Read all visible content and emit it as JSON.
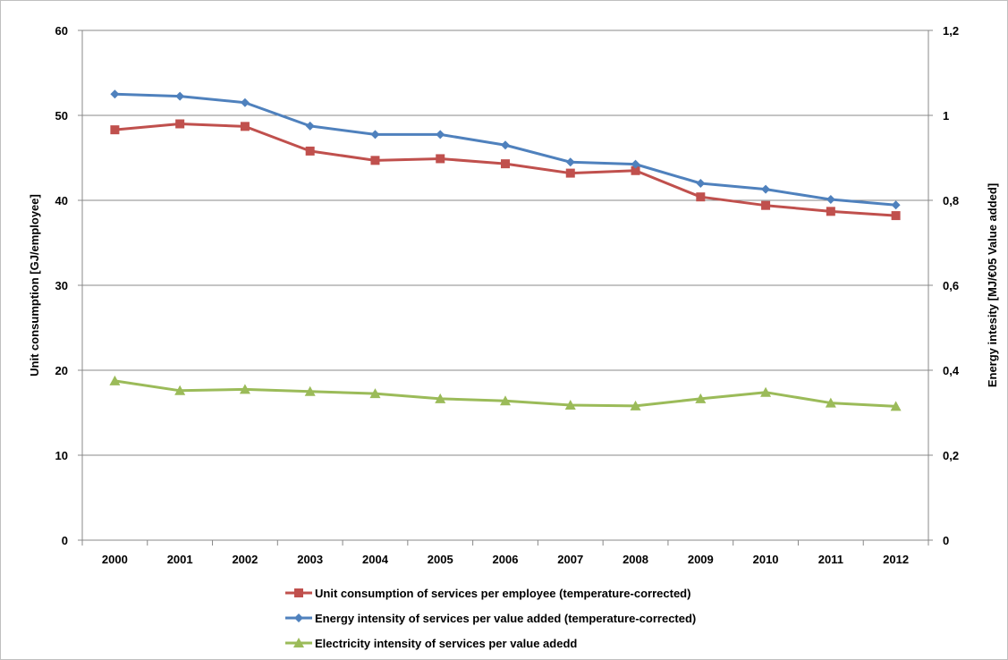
{
  "chart_data": {
    "type": "line",
    "categories": [
      "2000",
      "2001",
      "2002",
      "2003",
      "2004",
      "2005",
      "2006",
      "2007",
      "2008",
      "2009",
      "2010",
      "2011",
      "2012"
    ],
    "y_left": {
      "label": "Unit consumption [GJ/employee]",
      "range": [
        0,
        60
      ],
      "ticks": [
        "0",
        "10",
        "20",
        "30",
        "40",
        "50",
        "60"
      ]
    },
    "y_right": {
      "label": "Energy intesity [MJ/€05 Value added]",
      "range": [
        0,
        1.2
      ],
      "ticks": [
        "0",
        "0,2",
        "0,4",
        "0,6",
        "0,8",
        "1",
        "1,2"
      ]
    },
    "grid": true,
    "legend_position": "bottom",
    "series": [
      {
        "name": "Unit consumption of services per employee (temperature-corrected)",
        "axis": "left",
        "color": "#c0504d",
        "marker": "square",
        "values": [
          48.3,
          49.0,
          48.7,
          45.8,
          44.7,
          44.9,
          44.3,
          43.2,
          43.5,
          40.4,
          39.4,
          38.7,
          38.2
        ]
      },
      {
        "name": "Energy intensity of services per value added (temperature-corrected)",
        "axis": "right",
        "color": "#4f81bd",
        "marker": "diamond",
        "values": [
          1.05,
          1.045,
          1.03,
          0.975,
          0.955,
          0.955,
          0.93,
          0.89,
          0.885,
          0.84,
          0.826,
          0.802,
          0.789
        ]
      },
      {
        "name": "Electricity intensity of services per value adedd",
        "axis": "right",
        "color": "#9bbb59",
        "marker": "triangle",
        "values": [
          0.375,
          0.352,
          0.355,
          0.35,
          0.345,
          0.333,
          0.328,
          0.318,
          0.316,
          0.333,
          0.348,
          0.323,
          0.315
        ]
      }
    ]
  }
}
